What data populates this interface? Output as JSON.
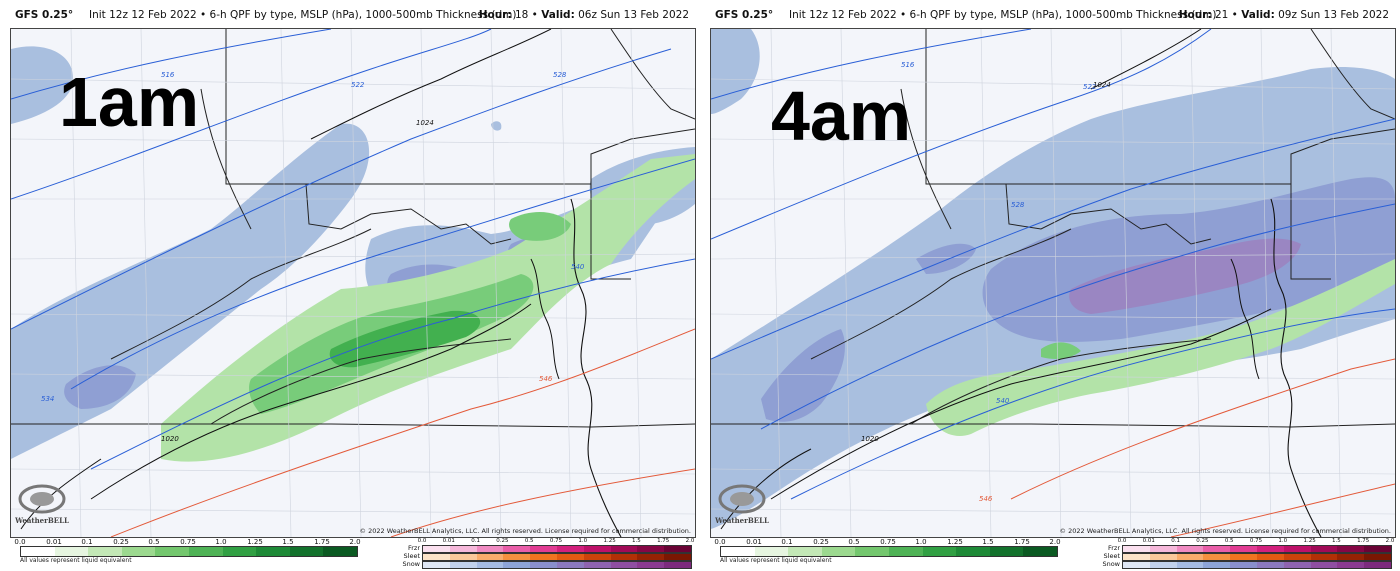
{
  "colors": {
    "snow_light": "#a9bfdf",
    "snow_mid": "#8f9fd3",
    "snow_heavy": "#9a86c2",
    "rain_light": "#b3e3a8",
    "rain_mid": "#78cc7a",
    "rain_heavy": "#42b04f",
    "thickness_blue": "#2a5fd6",
    "thickness_red": "#e35a3a",
    "isobar": "#111111"
  },
  "panels": [
    {
      "model": "GFS 0.25°",
      "description": "Init 12z 12 Feb 2022 • 6-h QPF by type, MSLP (hPa), 1000-500mb Thickness (dm)",
      "hour_label": "Hour:",
      "hour": "18",
      "valid_label": "Valid:",
      "valid": "06z Sun 13 Feb 2022",
      "big_label": "1am",
      "contour_labels": [
        "516",
        "522",
        "528",
        "540",
        "546",
        "1024",
        "1020",
        "534"
      ],
      "credit": "© 2022 WeatherBELL Analytics, LLC. All rights reserved. License required for commercial distribution.",
      "logo": "WeatherBELL"
    },
    {
      "model": "GFS 0.25°",
      "description": "Init 12z 12 Feb 2022 • 6-h QPF by type, MSLP (hPa), 1000-500mb Thickness (dm)",
      "hour_label": "Hour:",
      "hour": "21",
      "valid_label": "Valid:",
      "valid": "09z Sun 13 Feb 2022",
      "big_label": "4am",
      "contour_labels": [
        "516",
        "522",
        "528",
        "540",
        "546",
        "1024",
        "1020"
      ],
      "credit": "© 2022 WeatherBELL Analytics, LLC. All rights reserved. License required for commercial distribution.",
      "logo": "WeatherBELL"
    }
  ],
  "legend": {
    "qpf_ticks": [
      "0.0",
      "0.01",
      "0.1",
      "0.25",
      "0.5",
      "0.75",
      "1.0",
      "1.25",
      "1.5",
      "1.75",
      "2.0"
    ],
    "qpf_colors": [
      "#ffffff",
      "#e6f5e0",
      "#c3e8b6",
      "#9cd98f",
      "#74c76e",
      "#4fb356",
      "#31a043",
      "#1e8a37",
      "#13722c",
      "#0b5a22"
    ],
    "qpf_note": "All values represent liquid equivalent",
    "ptype_labels": [
      "Frzr",
      "Sleet",
      "Snow"
    ],
    "ptype_ticks": [
      "0.0",
      "0.01",
      "0.1",
      "0.25",
      "0.5",
      "0.75",
      "1.0",
      "1.25",
      "1.5",
      "1.75",
      "2.0"
    ],
    "frzr_colors": [
      "#fbe0ef",
      "#f6b8da",
      "#f08bc2",
      "#ea5ea9",
      "#e23c93",
      "#d3207d",
      "#be1169",
      "#a10a57",
      "#860645",
      "#6a0335"
    ],
    "sleet_colors": [
      "#fde3c8",
      "#fbc89a",
      "#f9ac6c",
      "#f6903f",
      "#f17420",
      "#e35a12",
      "#cc430a",
      "#b23006",
      "#962203",
      "#7a1702"
    ],
    "snow_colors": [
      "#dfe7f5",
      "#c2d1ec",
      "#a6bbe3",
      "#8ea4d8",
      "#8a8fcd",
      "#8c79bf",
      "#8f63b0",
      "#8f4ea1",
      "#8a3a90",
      "#7d2a7d"
    ]
  }
}
